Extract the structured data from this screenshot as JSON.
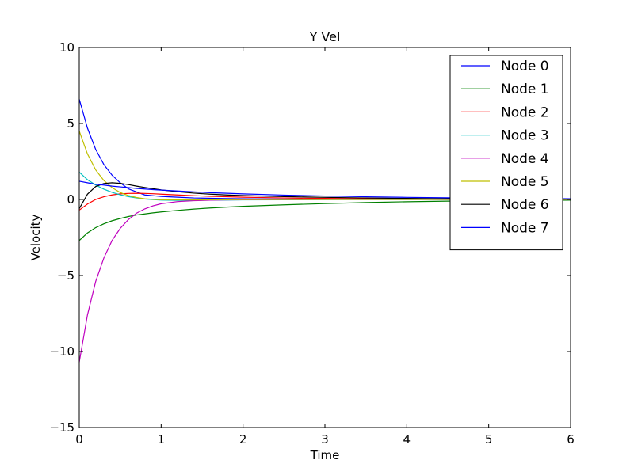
{
  "chart_data": {
    "type": "line",
    "title": "Y Vel",
    "xlabel": "Time",
    "ylabel": "Velocity",
    "xlim": [
      0,
      6
    ],
    "ylim": [
      -15,
      10
    ],
    "xticks": [
      "0",
      "1",
      "2",
      "3",
      "4",
      "5",
      "6"
    ],
    "yticks": [
      "10",
      "5",
      "0",
      "−5",
      "−10",
      "−15"
    ],
    "grid": false,
    "legend_position": "top-right",
    "x": [
      0,
      0.1,
      0.2,
      0.3,
      0.4,
      0.5,
      0.6,
      0.7,
      0.8,
      0.9,
      1.0,
      1.2,
      1.4,
      1.6,
      1.8,
      2.0,
      2.5,
      3.0,
      3.5,
      4.0,
      4.5,
      5.0,
      5.5,
      6.0
    ],
    "series": [
      {
        "name": "Node 0",
        "color": "#0000ff",
        "values": [
          6.6,
          4.7,
          3.3,
          2.3,
          1.6,
          1.1,
          0.7,
          0.5,
          0.3,
          0.25,
          0.2,
          0.15,
          0.1,
          0.08,
          0.06,
          0.05,
          0.03,
          0.02,
          0.01,
          0.01,
          0.0,
          0.0,
          0.0,
          0.0
        ]
      },
      {
        "name": "Node 1",
        "color": "#008000",
        "values": [
          -2.7,
          -2.2,
          -1.85,
          -1.6,
          -1.4,
          -1.25,
          -1.12,
          -1.02,
          -0.95,
          -0.88,
          -0.82,
          -0.72,
          -0.63,
          -0.56,
          -0.5,
          -0.45,
          -0.35,
          -0.27,
          -0.2,
          -0.15,
          -0.11,
          -0.08,
          -0.06,
          -0.05
        ]
      },
      {
        "name": "Node 2",
        "color": "#ff0000",
        "values": [
          -0.7,
          -0.3,
          0.0,
          0.18,
          0.3,
          0.37,
          0.4,
          0.41,
          0.4,
          0.38,
          0.35,
          0.3,
          0.25,
          0.21,
          0.18,
          0.15,
          0.1,
          0.07,
          0.05,
          0.03,
          0.02,
          0.01,
          0.01,
          0.0
        ]
      },
      {
        "name": "Node 3",
        "color": "#00bfbf",
        "values": [
          1.8,
          1.3,
          0.95,
          0.68,
          0.47,
          0.31,
          0.19,
          0.1,
          0.03,
          -0.01,
          -0.04,
          -0.06,
          -0.06,
          -0.05,
          -0.04,
          -0.03,
          -0.02,
          -0.01,
          0.0,
          0.0,
          0.0,
          0.0,
          0.0,
          0.0
        ]
      },
      {
        "name": "Node 4",
        "color": "#bf00bf",
        "values": [
          -10.7,
          -7.6,
          -5.4,
          -3.85,
          -2.7,
          -1.9,
          -1.32,
          -0.9,
          -0.62,
          -0.42,
          -0.28,
          -0.14,
          -0.08,
          -0.05,
          -0.03,
          -0.02,
          -0.01,
          0.0,
          0.0,
          0.0,
          0.0,
          0.0,
          0.0,
          0.0
        ]
      },
      {
        "name": "Node 5",
        "color": "#bfbf00",
        "values": [
          4.5,
          3.0,
          1.95,
          1.25,
          0.78,
          0.46,
          0.26,
          0.13,
          0.05,
          0.01,
          -0.02,
          -0.03,
          -0.03,
          -0.02,
          -0.02,
          -0.01,
          0.0,
          0.0,
          0.0,
          0.0,
          0.0,
          0.0,
          0.0,
          0.0
        ]
      },
      {
        "name": "Node 6",
        "color": "#000000",
        "values": [
          -0.6,
          0.35,
          0.85,
          1.05,
          1.1,
          1.06,
          0.98,
          0.88,
          0.79,
          0.71,
          0.63,
          0.51,
          0.42,
          0.35,
          0.3,
          0.26,
          0.19,
          0.14,
          0.1,
          0.07,
          0.05,
          0.04,
          0.03,
          0.02
        ]
      },
      {
        "name": "Node 7",
        "color": "#0000ff",
        "values": [
          1.2,
          1.1,
          1.0,
          0.95,
          0.88,
          0.83,
          0.78,
          0.73,
          0.69,
          0.65,
          0.62,
          0.56,
          0.5,
          0.45,
          0.41,
          0.37,
          0.29,
          0.23,
          0.18,
          0.14,
          0.11,
          0.09,
          0.07,
          0.05
        ]
      }
    ]
  }
}
